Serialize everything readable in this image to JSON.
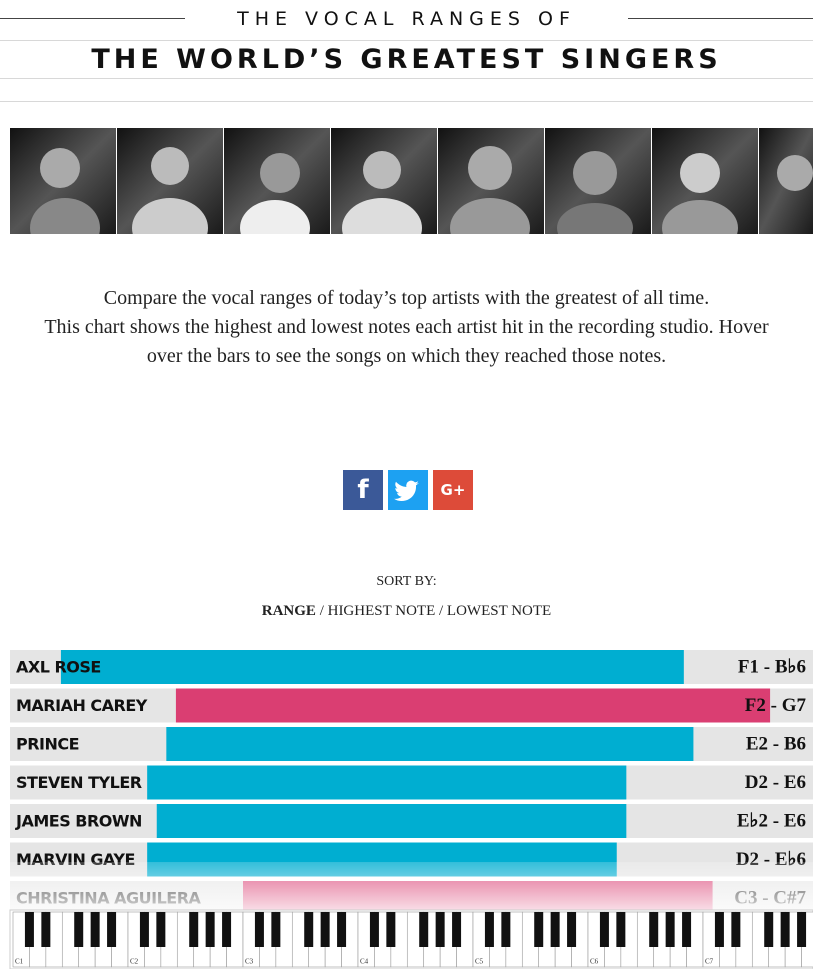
{
  "header": {
    "title_line1": "THE VOCAL RANGES OF",
    "title_line2": "THE WORLD’S GREATEST SINGERS"
  },
  "intro": {
    "paragraphs": [
      "Compare the vocal ranges of today’s top artists with the greatest of all time.",
      "This chart shows the highest and lowest notes each artist hit in the recording studio. Hover over the bars to see the songs on which they reached those notes."
    ]
  },
  "share": {
    "facebook": "f",
    "google": "G+"
  },
  "sort": {
    "label": "SORT BY:",
    "options": [
      "RANGE",
      "HIGHEST NOTE",
      "LOWEST NOTE"
    ],
    "separator": "/"
  },
  "rows": [
    {
      "name": "AXL ROSE",
      "range": "F1 - B♭6",
      "color": "#00aed1"
    },
    {
      "name": "MARIAH CAREY",
      "range": "F2 - G7",
      "color": "#da3e72"
    },
    {
      "name": "PRINCE",
      "range": "E2 - B6",
      "color": "#00aed1"
    },
    {
      "name": "STEVEN TYLER",
      "range": "D2 - E6",
      "color": "#00aed1"
    },
    {
      "name": "JAMES BROWN",
      "range": "E♭2 - E6",
      "color": "#00aed1"
    },
    {
      "name": "MARVIN GAYE",
      "range": "D2 - E♭6",
      "color": "#00aed1"
    },
    {
      "name": "CHRISTINA AGUILERA",
      "range": "C3 - C#7",
      "color": "#da3e72"
    }
  ],
  "keyboard": {
    "labels": [
      "C1",
      "C2",
      "C3",
      "C4",
      "C5",
      "C6",
      "C7"
    ]
  }
}
